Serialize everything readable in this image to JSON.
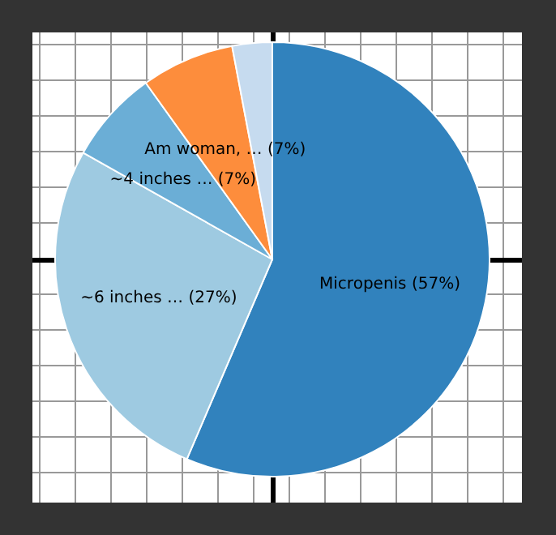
{
  "chart_data": {
    "type": "pie",
    "categories": [
      "Micropenis (57%)",
      "~6 inches … (27%)",
      "~4 inches … (7%)",
      "Am woman, … (7%)",
      null
    ],
    "values": [
      57,
      27,
      7,
      7,
      3
    ],
    "colors": [
      "#3182bd",
      "#9ecae1",
      "#6baed6",
      "#fd8d3c",
      "#c6dbef"
    ],
    "legend": false
  }
}
